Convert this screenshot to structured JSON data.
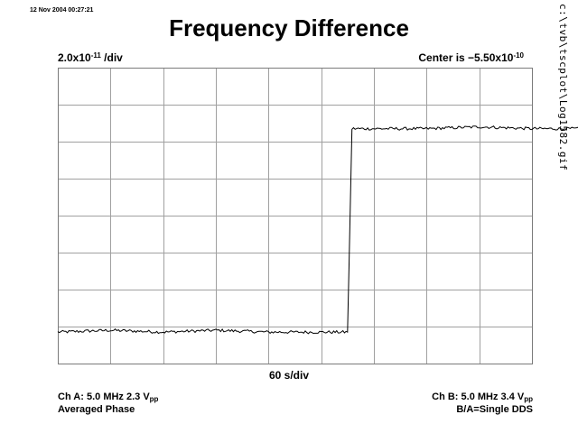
{
  "timestamp": "12 Nov 2004 00:27:21",
  "side_path": "c:\\tvb\\tscplot\\Log1582.gif",
  "header": {
    "scale_mantissa": "2.0x10",
    "scale_exp": "-11",
    "scale_unit": " /div",
    "center_prefix": "Center is −5.50x10",
    "center_exp": "-10"
  },
  "footer": {
    "ch_a_prefix": "Ch A: 5.0 MHz 2.3 V",
    "ch_a_sub": "pp",
    "ch_a_line2": "Averaged Phase",
    "ch_b_prefix": "Ch B: 5.0 MHz 3.4 V",
    "ch_b_sub": "pp",
    "ch_b_line2": "B/A=Single DDS"
  },
  "chart_data": {
    "type": "line",
    "title": "Frequency Difference",
    "xlabel": "60 s/div",
    "ylabel": "",
    "grid": true,
    "x_divisions": 9,
    "y_divisions": 8,
    "y_per_div": 2e-11,
    "center": -5.5e-10,
    "ylim": [
      -6.3e-10,
      -4.7e-10
    ],
    "series": [
      {
        "x": [
          0,
          60,
          120,
          180,
          240,
          300,
          330,
          335,
          360,
          420,
          480,
          540,
          600,
          660,
          720,
          780,
          840,
          900
        ],
        "y": [
          -6.13e-10,
          -6.12e-10,
          -6.13e-10,
          -6.12e-10,
          -6.13e-10,
          -6.13e-10,
          -6.13e-10,
          -5.03e-10,
          -5.03e-10,
          -5.03e-10,
          -5.02e-10,
          -5.03e-10,
          -5.03e-10,
          -5.03e-10,
          -5.03e-10,
          -5.03e-10,
          -5.03e-10,
          -5.03e-10
        ]
      }
    ]
  }
}
